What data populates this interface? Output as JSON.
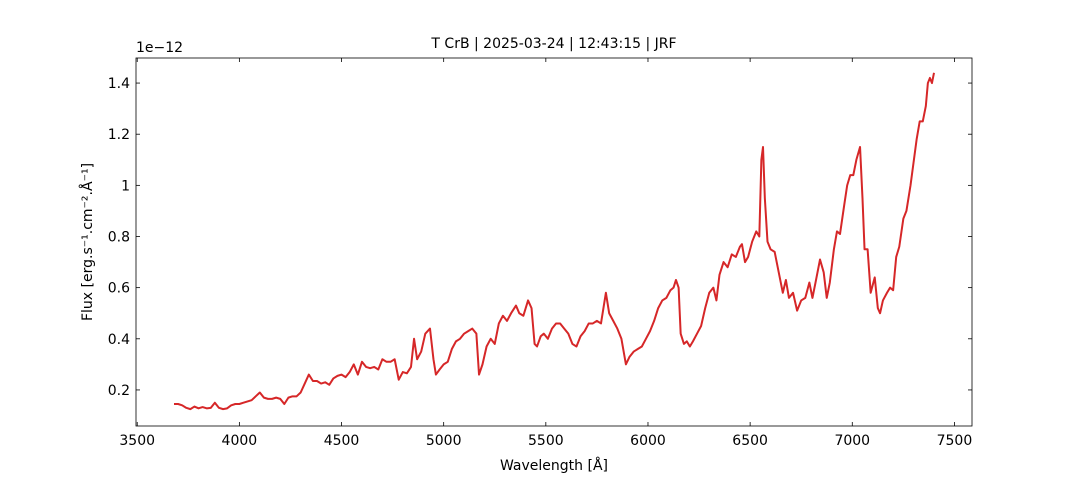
{
  "chart_data": {
    "type": "line",
    "title": "T CrB | 2025-03-24 | 12:43:15 | JRF",
    "x_label": "Wavelength [Å]",
    "y_label": "Flux [erg.s⁻¹.cm⁻².Å⁻¹]",
    "y_offset_label": "1e−12",
    "color": "#d62728",
    "xlim": [
      3494,
      7586
    ],
    "ylim": [
      0.059,
      1.498
    ],
    "xticks": [
      3500,
      4000,
      4500,
      5000,
      5500,
      6000,
      6500,
      7000,
      7500
    ],
    "yticks": [
      0.2,
      0.4,
      0.6,
      0.8,
      1.0,
      1.2,
      1.4
    ],
    "x": [
      3680,
      3700,
      3720,
      3740,
      3760,
      3780,
      3800,
      3820,
      3840,
      3860,
      3880,
      3900,
      3920,
      3940,
      3960,
      3980,
      4000,
      4020,
      4040,
      4060,
      4080,
      4100,
      4120,
      4140,
      4160,
      4180,
      4200,
      4220,
      4240,
      4260,
      4280,
      4300,
      4320,
      4340,
      4360,
      4380,
      4400,
      4420,
      4440,
      4460,
      4480,
      4500,
      4520,
      4540,
      4560,
      4580,
      4600,
      4620,
      4640,
      4660,
      4680,
      4700,
      4720,
      4740,
      4760,
      4780,
      4800,
      4820,
      4840,
      4855,
      4870,
      4890,
      4910,
      4933,
      4950,
      4962,
      4980,
      5000,
      5020,
      5040,
      5060,
      5080,
      5100,
      5120,
      5140,
      5160,
      5173,
      5190,
      5210,
      5230,
      5250,
      5270,
      5290,
      5310,
      5330,
      5354,
      5370,
      5390,
      5413,
      5430,
      5445,
      5457,
      5475,
      5490,
      5510,
      5530,
      5550,
      5570,
      5590,
      5610,
      5630,
      5650,
      5670,
      5690,
      5710,
      5730,
      5750,
      5770,
      5794,
      5810,
      5830,
      5850,
      5870,
      5892,
      5910,
      5930,
      5950,
      5970,
      5990,
      6010,
      6030,
      6050,
      6070,
      6090,
      6110,
      6125,
      6137,
      6150,
      6160,
      6176,
      6190,
      6205,
      6220,
      6240,
      6260,
      6280,
      6300,
      6320,
      6335,
      6350,
      6370,
      6390,
      6410,
      6430,
      6450,
      6460,
      6475,
      6490,
      6510,
      6530,
      6545,
      6555,
      6563,
      6572,
      6585,
      6600,
      6620,
      6640,
      6660,
      6675,
      6690,
      6710,
      6730,
      6750,
      6770,
      6790,
      6805,
      6820,
      6842,
      6860,
      6875,
      6890,
      6910,
      6925,
      6940,
      6960,
      6975,
      6990,
      7005,
      7020,
      7038,
      7050,
      7060,
      7075,
      7090,
      7110,
      7125,
      7136,
      7150,
      7170,
      7185,
      7200,
      7215,
      7230,
      7250,
      7265,
      7285,
      7300,
      7315,
      7330,
      7345,
      7360,
      7370,
      7380,
      7390,
      7400
    ],
    "values": [
      0.145,
      0.145,
      0.14,
      0.13,
      0.125,
      0.135,
      0.128,
      0.133,
      0.128,
      0.13,
      0.15,
      0.13,
      0.125,
      0.128,
      0.14,
      0.145,
      0.145,
      0.15,
      0.155,
      0.16,
      0.175,
      0.19,
      0.17,
      0.165,
      0.165,
      0.17,
      0.165,
      0.145,
      0.17,
      0.175,
      0.175,
      0.19,
      0.225,
      0.26,
      0.235,
      0.235,
      0.225,
      0.23,
      0.22,
      0.245,
      0.255,
      0.26,
      0.25,
      0.27,
      0.3,
      0.26,
      0.31,
      0.29,
      0.285,
      0.29,
      0.28,
      0.32,
      0.31,
      0.31,
      0.32,
      0.24,
      0.27,
      0.265,
      0.29,
      0.4,
      0.32,
      0.35,
      0.42,
      0.44,
      0.32,
      0.26,
      0.28,
      0.3,
      0.31,
      0.36,
      0.39,
      0.4,
      0.42,
      0.43,
      0.44,
      0.42,
      0.26,
      0.3,
      0.37,
      0.4,
      0.38,
      0.46,
      0.49,
      0.47,
      0.5,
      0.53,
      0.5,
      0.49,
      0.55,
      0.52,
      0.38,
      0.37,
      0.41,
      0.42,
      0.4,
      0.44,
      0.46,
      0.46,
      0.44,
      0.42,
      0.38,
      0.37,
      0.41,
      0.43,
      0.46,
      0.46,
      0.47,
      0.46,
      0.58,
      0.5,
      0.47,
      0.44,
      0.4,
      0.3,
      0.33,
      0.35,
      0.36,
      0.37,
      0.4,
      0.43,
      0.47,
      0.52,
      0.55,
      0.56,
      0.59,
      0.6,
      0.63,
      0.6,
      0.42,
      0.38,
      0.39,
      0.37,
      0.39,
      0.42,
      0.45,
      0.52,
      0.58,
      0.6,
      0.55,
      0.65,
      0.7,
      0.68,
      0.73,
      0.72,
      0.76,
      0.77,
      0.7,
      0.72,
      0.78,
      0.82,
      0.8,
      1.1,
      1.15,
      0.95,
      0.78,
      0.75,
      0.74,
      0.66,
      0.58,
      0.63,
      0.56,
      0.58,
      0.51,
      0.55,
      0.56,
      0.62,
      0.56,
      0.62,
      0.71,
      0.66,
      0.56,
      0.62,
      0.75,
      0.82,
      0.81,
      0.92,
      1.0,
      1.04,
      1.04,
      1.1,
      1.15,
      0.95,
      0.75,
      0.75,
      0.58,
      0.64,
      0.52,
      0.5,
      0.55,
      0.58,
      0.6,
      0.59,
      0.72,
      0.76,
      0.87,
      0.9,
      1.0,
      1.09,
      1.18,
      1.25,
      1.25,
      1.31,
      1.4,
      1.42,
      1.4,
      1.44
    ]
  }
}
